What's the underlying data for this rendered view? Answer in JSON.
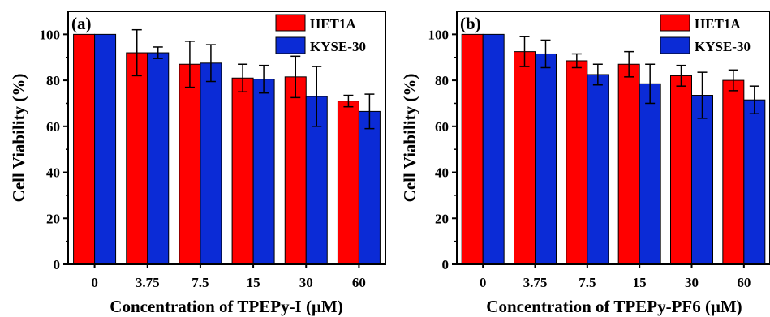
{
  "chart_data": [
    {
      "type": "bar",
      "panel_label": "(a)",
      "categories": [
        "0",
        "3.75",
        "7.5",
        "15",
        "30",
        "60"
      ],
      "xlabel": "Concentration of TPEPy-I (μM)",
      "ylabel": "Cell Viability (%)",
      "ylim": [
        0,
        110
      ],
      "yticks": [
        0,
        20,
        40,
        60,
        80,
        100
      ],
      "legend_position": "top-right",
      "series": [
        {
          "name": "HET1A",
          "color": "#ff0000",
          "values": [
            100,
            92,
            87,
            81,
            81.5,
            71
          ],
          "errors": [
            0,
            10,
            10,
            6,
            9,
            2.5
          ]
        },
        {
          "name": "KYSE-30",
          "color": "#0b2bd6",
          "values": [
            100,
            92,
            87.5,
            80.5,
            73,
            66.5
          ],
          "errors": [
            0,
            2.5,
            8,
            6,
            13,
            7.5
          ]
        }
      ]
    },
    {
      "type": "bar",
      "panel_label": "(b)",
      "categories": [
        "0",
        "3.75",
        "7.5",
        "15",
        "30",
        "60"
      ],
      "xlabel": "Concentration of TPEPy-PF6 (μM)",
      "ylabel": "Cell Viability (%)",
      "ylim": [
        0,
        110
      ],
      "yticks": [
        0,
        20,
        40,
        60,
        80,
        100
      ],
      "legend_position": "top-right",
      "series": [
        {
          "name": "HET1A",
          "color": "#ff0000",
          "values": [
            100,
            92.5,
            88.5,
            87,
            82,
            80
          ],
          "errors": [
            0,
            6.5,
            3,
            5.5,
            4.5,
            4.5
          ]
        },
        {
          "name": "KYSE-30",
          "color": "#0b2bd6",
          "values": [
            100,
            91.5,
            82.5,
            78.5,
            73.5,
            71.5
          ],
          "errors": [
            0,
            6,
            4.5,
            8.5,
            10,
            6
          ]
        }
      ]
    }
  ]
}
